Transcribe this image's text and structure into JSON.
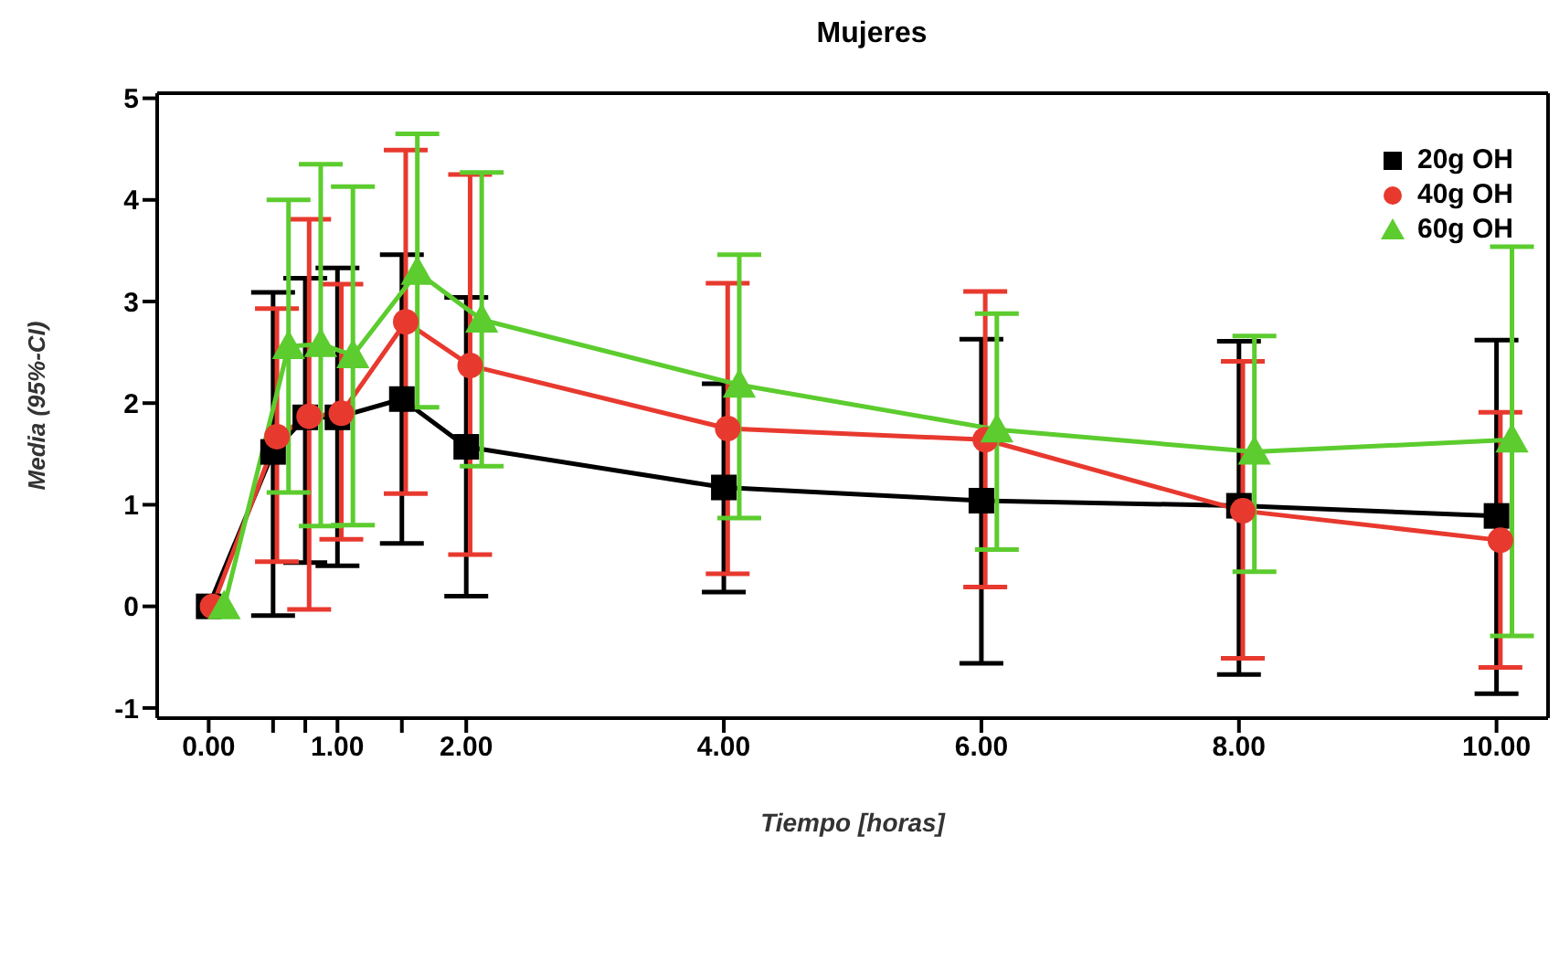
{
  "chart_data": {
    "type": "line",
    "title": "Mujeres",
    "xlabel": "Tiempo [horas]",
    "ylabel": "Media (95%-CI)",
    "xlim": [
      -0.4,
      10.4
    ],
    "xticks": [
      {
        "value": 0,
        "label": "0.00"
      },
      {
        "value": 0.5,
        "label": null
      },
      {
        "value": 0.75,
        "label": null
      },
      {
        "value": 1,
        "label": "1.00"
      },
      {
        "value": 1.5,
        "label": null
      },
      {
        "value": 2,
        "label": "2.00"
      },
      {
        "value": 4,
        "label": "4.00"
      },
      {
        "value": 6,
        "label": "6.00"
      },
      {
        "value": 8,
        "label": "8.00"
      },
      {
        "value": 10,
        "label": "10.00"
      }
    ],
    "ylim": [
      -1.1,
      5.05
    ],
    "yticks": [
      -1,
      0,
      1,
      2,
      3,
      4,
      5
    ],
    "legend": "top right",
    "line_style": "solid",
    "series": [
      {
        "name": "20g OH",
        "color": "#000000",
        "marker": "square",
        "x": [
          0,
          0.5,
          0.75,
          1,
          1.5,
          2,
          4,
          6,
          8,
          10
        ],
        "values": [
          0,
          1.52,
          1.86,
          1.86,
          2.04,
          1.57,
          1.17,
          1.04,
          0.99,
          0.89
        ],
        "errors": [
          null,
          [
            -0.09,
            3.09
          ],
          [
            0.43,
            3.23
          ],
          [
            0.4,
            3.33
          ],
          [
            0.62,
            3.46
          ],
          [
            0.1,
            3.04
          ],
          [
            0.14,
            2.19
          ],
          [
            -0.56,
            2.63
          ],
          [
            -0.67,
            2.61
          ],
          [
            -0.86,
            2.62
          ]
        ]
      },
      {
        "name": "40g OH",
        "color": "#e8392f",
        "marker": "circle",
        "x": [
          0.03,
          0.53,
          0.78,
          1.03,
          1.53,
          2.03,
          4.03,
          6.03,
          8.03,
          10.03
        ],
        "values": [
          0,
          1.67,
          1.87,
          1.9,
          2.8,
          2.37,
          1.75,
          1.64,
          0.94,
          0.65
        ],
        "errors": [
          null,
          [
            0.44,
            2.93
          ],
          [
            -0.03,
            3.81
          ],
          [
            0.66,
            3.17
          ],
          [
            1.11,
            4.49
          ],
          [
            0.51,
            4.25
          ],
          [
            0.32,
            3.18
          ],
          [
            0.19,
            3.1
          ],
          [
            -0.51,
            2.41
          ],
          [
            -0.6,
            1.91
          ]
        ]
      },
      {
        "name": "60g OH",
        "color": "#5ccc2e",
        "marker": "triangle",
        "x": [
          0.12,
          0.62,
          0.87,
          1.12,
          1.62,
          2.12,
          4.12,
          6.12,
          8.12,
          10.12
        ],
        "values": [
          0,
          2.56,
          2.58,
          2.47,
          3.29,
          2.82,
          2.18,
          1.74,
          1.52,
          1.64
        ],
        "errors": [
          null,
          [
            1.12,
            4.0
          ],
          [
            0.79,
            4.35
          ],
          [
            0.8,
            4.13
          ],
          [
            1.96,
            4.65
          ],
          [
            1.38,
            4.27
          ],
          [
            0.87,
            3.46
          ],
          [
            0.56,
            2.88
          ],
          [
            0.34,
            2.66
          ],
          [
            -0.29,
            3.54
          ]
        ]
      }
    ]
  }
}
